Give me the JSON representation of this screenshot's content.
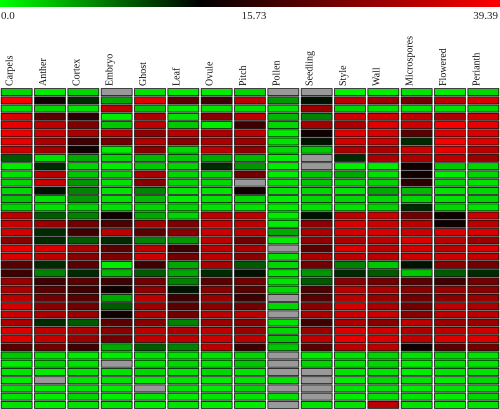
{
  "colorbar": {
    "min_label": "0.0",
    "mid_label": "15.73",
    "max_label": "39.39",
    "colors": [
      "#00ff00",
      "#000000",
      "#ff0000"
    ]
  },
  "chart_data": {
    "type": "heatmap",
    "title": "",
    "xlabel": "",
    "ylabel": "",
    "value_range": [
      0.0,
      39.39
    ],
    "midpoint": 15.73,
    "missing_color": "#999999",
    "columns": [
      "Carpels",
      "Anther",
      "Cortex",
      "Embryo",
      "Ghost",
      "Leaf",
      "Ovule",
      "Pitch",
      "Pollen",
      "Seedling",
      "Style",
      "Wall",
      "Microspores",
      "Flowered",
      "Perianth"
    ],
    "rows": [
      [
        5,
        3,
        5,
        null,
        4,
        3,
        3,
        5,
        null,
        null,
        2,
        3,
        4,
        3,
        5
      ],
      [
        38,
        16,
        14,
        8,
        35,
        20,
        18,
        30,
        9,
        15,
        30,
        26,
        22,
        30,
        34
      ],
      [
        4,
        5,
        4,
        30,
        6,
        3,
        4,
        4,
        4,
        26,
        5,
        4,
        4,
        4,
        5
      ],
      [
        34,
        20,
        17,
        3,
        28,
        4,
        24,
        30,
        7,
        10,
        32,
        33,
        30,
        28,
        33
      ],
      [
        36,
        30,
        23,
        6,
        30,
        6,
        3,
        18,
        5,
        27,
        28,
        35,
        32,
        38,
        36
      ],
      [
        37,
        32,
        28,
        30,
        25,
        30,
        28,
        30,
        3,
        16,
        35,
        34,
        20,
        34,
        34
      ],
      [
        36,
        28,
        18,
        22,
        29,
        24,
        28,
        26,
        4,
        15,
        33,
        32,
        14,
        38,
        35
      ],
      [
        32,
        27,
        16,
        3,
        24,
        5,
        30,
        25,
        5,
        6,
        28,
        28,
        32,
        36,
        30
      ],
      [
        12,
        4,
        8,
        5,
        7,
        6,
        8,
        7,
        3,
        null,
        14,
        28,
        28,
        30,
        26
      ],
      [
        3,
        14,
        5,
        3,
        6,
        5,
        14,
        9,
        3,
        null,
        3,
        3,
        16,
        6,
        5
      ],
      [
        4,
        30,
        6,
        5,
        28,
        5,
        5,
        22,
        3,
        6,
        8,
        4,
        16,
        3,
        5
      ],
      [
        5,
        32,
        9,
        4,
        24,
        5,
        5,
        null,
        4,
        6,
        5,
        5,
        17,
        5,
        4
      ],
      [
        5,
        15,
        10,
        4,
        10,
        4,
        4,
        16,
        4,
        5,
        4,
        8,
        7,
        4,
        5
      ],
      [
        6,
        4,
        9,
        4,
        7,
        3,
        4,
        5,
        3,
        5,
        5,
        5,
        5,
        4,
        5
      ],
      [
        5,
        4,
        5,
        4,
        5,
        5,
        4,
        4,
        3,
        4,
        4,
        5,
        14,
        5,
        4
      ],
      [
        30,
        12,
        10,
        16,
        8,
        5,
        30,
        30,
        3,
        15,
        30,
        32,
        22,
        16,
        32
      ],
      [
        32,
        26,
        22,
        19,
        27,
        23,
        32,
        30,
        3,
        25,
        34,
        32,
        30,
        16,
        30
      ],
      [
        33,
        14,
        18,
        30,
        20,
        24,
        32,
        30,
        8,
        28,
        33,
        34,
        32,
        34,
        34
      ],
      [
        24,
        14,
        12,
        14,
        10,
        9,
        30,
        22,
        3,
        25,
        28,
        30,
        34,
        30,
        26
      ],
      [
        36,
        34,
        28,
        20,
        30,
        18,
        30,
        28,
        null,
        20,
        34,
        30,
        33,
        30,
        34
      ],
      [
        34,
        30,
        24,
        23,
        32,
        22,
        30,
        24,
        4,
        28,
        30,
        30,
        32,
        32,
        31
      ],
      [
        20,
        14,
        20,
        3,
        18,
        8,
        28,
        12,
        5,
        22,
        10,
        6,
        15,
        24,
        22
      ],
      [
        18,
        10,
        14,
        7,
        12,
        8,
        14,
        15,
        4,
        9,
        14,
        12,
        6,
        12,
        14
      ],
      [
        26,
        18,
        20,
        18,
        22,
        10,
        20,
        22,
        4,
        12,
        24,
        22,
        20,
        18,
        22
      ],
      [
        28,
        20,
        18,
        16,
        25,
        15,
        24,
        20,
        5,
        19,
        30,
        28,
        24,
        26,
        24
      ],
      [
        30,
        22,
        20,
        8,
        30,
        18,
        26,
        18,
        null,
        20,
        30,
        26,
        22,
        24,
        26
      ],
      [
        33,
        24,
        22,
        12,
        26,
        20,
        24,
        22,
        5,
        24,
        33,
        28,
        22,
        30,
        28
      ],
      [
        32,
        28,
        26,
        16,
        28,
        22,
        30,
        30,
        null,
        28,
        32,
        32,
        24,
        30,
        30
      ],
      [
        28,
        14,
        12,
        20,
        24,
        10,
        26,
        24,
        4,
        18,
        28,
        24,
        30,
        26,
        26
      ],
      [
        34,
        30,
        28,
        24,
        30,
        28,
        30,
        26,
        5,
        26,
        34,
        32,
        28,
        30,
        32
      ],
      [
        34,
        31,
        26,
        22,
        30,
        30,
        32,
        30,
        6,
        30,
        36,
        34,
        30,
        34,
        34
      ],
      [
        20,
        22,
        18,
        8,
        12,
        10,
        30,
        18,
        6,
        20,
        30,
        30,
        16,
        20,
        22
      ],
      [
        6,
        4,
        3,
        3,
        4,
        4,
        4,
        5,
        null,
        3,
        4,
        5,
        4,
        5,
        4
      ],
      [
        3,
        5,
        4,
        null,
        4,
        5,
        4,
        6,
        null,
        5,
        4,
        5,
        3,
        4,
        4
      ],
      [
        4,
        3,
        4,
        4,
        5,
        4,
        5,
        4,
        null,
        null,
        4,
        4,
        3,
        4,
        4
      ],
      [
        3,
        null,
        4,
        4,
        3,
        4,
        3,
        4,
        4,
        null,
        3,
        5,
        4,
        3,
        5
      ],
      [
        4,
        3,
        4,
        3,
        null,
        4,
        3,
        5,
        null,
        null,
        4,
        4,
        3,
        4,
        4
      ],
      [
        4,
        3,
        5,
        3,
        4,
        3,
        4,
        4,
        4,
        null,
        3,
        4,
        4,
        3,
        5
      ],
      [
        4,
        3,
        4,
        4,
        3,
        4,
        3,
        3,
        null,
        4,
        4,
        30,
        4,
        3,
        4
      ]
    ]
  }
}
